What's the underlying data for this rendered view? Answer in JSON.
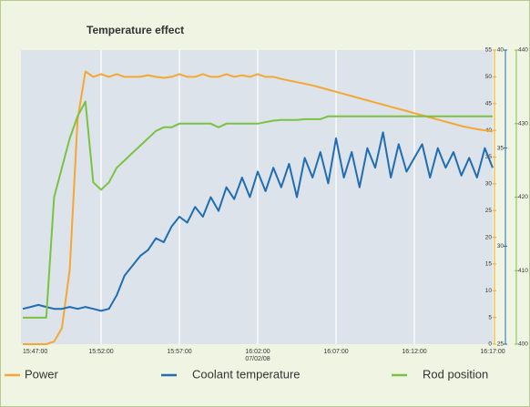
{
  "chart_data": {
    "type": "line",
    "title": "Temperature effect",
    "annotation": "07/02/08",
    "x": [
      0,
      0.5,
      1,
      1.5,
      2,
      2.5,
      3,
      3.5,
      4,
      4.5,
      5,
      5.5,
      6,
      6.5,
      7,
      7.5,
      8,
      8.5,
      9,
      9.5,
      10,
      10.5,
      11,
      11.5,
      12,
      12.5,
      13,
      13.5,
      14,
      14.5,
      15,
      15.5,
      16,
      16.5,
      17,
      17.5,
      18,
      18.5,
      19,
      19.5,
      20,
      20.5,
      21,
      21.5,
      22,
      22.5,
      23,
      23.5,
      24,
      24.5,
      25,
      25.5,
      26,
      26.5,
      27,
      27.5,
      28,
      28.5,
      29,
      29.5,
      30
    ],
    "xlim": [
      0,
      30
    ],
    "xticks": [
      {
        "value": 0,
        "label": "15:47:00"
      },
      {
        "value": 5,
        "label": "15:52:00"
      },
      {
        "value": 10,
        "label": "15:57:00"
      },
      {
        "value": 15,
        "label": "16:02:00"
      },
      {
        "value": 20,
        "label": "16:07:00"
      },
      {
        "value": 25,
        "label": "16:12:00"
      },
      {
        "value": 30,
        "label": "16:17:00"
      }
    ],
    "ylim": [
      0,
      55
    ],
    "yticks": [
      0,
      5,
      10,
      15,
      20,
      25,
      30,
      35,
      40,
      45,
      50,
      55
    ],
    "y2lim": [
      25,
      40
    ],
    "y2ticks": [
      25,
      30,
      35,
      40
    ],
    "y3lim": [
      400,
      440
    ],
    "y3ticks": [
      400,
      410,
      420,
      430,
      440
    ],
    "grid": true,
    "series": [
      {
        "name": "Power",
        "color": "#f5a733",
        "axis": "y",
        "values": [
          0,
          0,
          0,
          0,
          0.5,
          3,
          14,
          42,
          51,
          50,
          50.5,
          50,
          50.5,
          50,
          50,
          50,
          50.3,
          50,
          49.8,
          50,
          50.5,
          50,
          50,
          50.5,
          50,
          50,
          50.5,
          50,
          50.3,
          50,
          50.5,
          50,
          50,
          49.6,
          49.3,
          49,
          48.7,
          48.4,
          48,
          47.6,
          47.2,
          46.8,
          46.4,
          46,
          45.6,
          45.2,
          44.8,
          44.4,
          44,
          43.6,
          43.2,
          42.8,
          42.4,
          42,
          41.6,
          41.2,
          40.8,
          40.5,
          40.2,
          40,
          39.8
        ]
      },
      {
        "name": "Coolant temperature",
        "color": "#1f6db3",
        "axis": "y2",
        "values": [
          26.8,
          26.9,
          27,
          26.9,
          26.8,
          26.8,
          26.9,
          26.8,
          26.9,
          26.8,
          26.7,
          26.8,
          27.5,
          28.5,
          29,
          29.5,
          29.8,
          30.4,
          30.2,
          31,
          31.5,
          31.2,
          32,
          31.5,
          32.5,
          31.8,
          33,
          32.4,
          33.5,
          32.5,
          33.8,
          32.8,
          34,
          33,
          34.2,
          32.5,
          34.5,
          33.5,
          34.8,
          33.2,
          35.5,
          33.5,
          34.8,
          33,
          35,
          34,
          35.8,
          33.5,
          35.2,
          33.8,
          34.5,
          35.2,
          33.5,
          35,
          34,
          34.8,
          33.6,
          34.5,
          33.5,
          35,
          34
        ]
      },
      {
        "name": "Rod position",
        "color": "#7cc242",
        "axis": "y3",
        "values": [
          403.6,
          403.6,
          403.6,
          403.6,
          420,
          424,
          428,
          431,
          433,
          422,
          421,
          422,
          424,
          425,
          426,
          427,
          428,
          429,
          429.5,
          429.5,
          430,
          430,
          430,
          430,
          430,
          429.5,
          430,
          430,
          430,
          430,
          430,
          430.2,
          430.4,
          430.5,
          430.5,
          430.5,
          430.6,
          430.6,
          430.6,
          431,
          431,
          431,
          431,
          431,
          431,
          431,
          431,
          431,
          431,
          431,
          431,
          431,
          431,
          431,
          431,
          431,
          431,
          431,
          431,
          431,
          431
        ]
      }
    ]
  }
}
